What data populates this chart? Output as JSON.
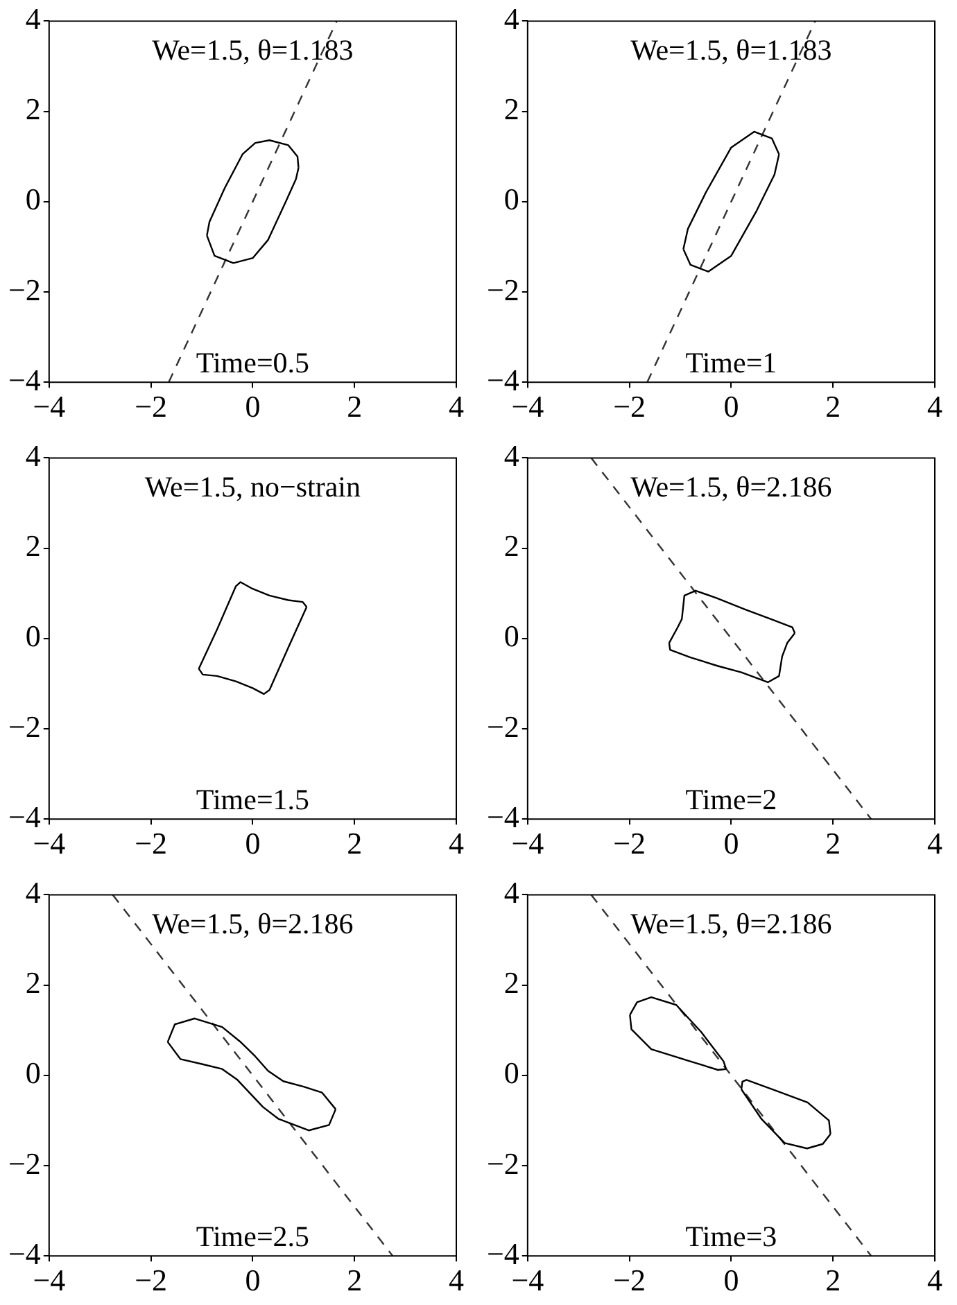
{
  "chart_data": [
    {
      "type": "line",
      "annotations": [
        "We=1.5, θ=1.183",
        "Time=0.5"
      ],
      "xlim": [
        -4,
        4
      ],
      "ylim": [
        -4,
        4
      ],
      "xticks": [
        -4,
        -2,
        0,
        2,
        4
      ],
      "yticks": [
        -4,
        -2,
        0,
        2,
        4
      ],
      "marker": "none",
      "legend": false,
      "series": [
        {
          "color": "#000000",
          "line_style": "solid",
          "x": [
            -0.9,
            -0.85,
            -0.55,
            -0.2,
            0.05,
            0.33,
            0.7,
            0.88,
            0.9,
            null,
            -0.9,
            -0.75,
            -0.38,
            0.0,
            0.3,
            0.65,
            0.85,
            0.9
          ],
          "values": [
            -0.75,
            -0.45,
            0.3,
            1.05,
            1.3,
            1.36,
            1.25,
            1.0,
            0.75,
            null,
            -0.75,
            -1.2,
            -1.36,
            -1.25,
            -0.85,
            0.0,
            0.5,
            0.75
          ]
        },
        {
          "color": "#333333",
          "line_style": "dashed",
          "x": [
            -1.65,
            1.65
          ],
          "values": [
            -4,
            4
          ]
        }
      ]
    },
    {
      "type": "line",
      "annotations": [
        "We=1.5, θ=1.183",
        "Time=1"
      ],
      "xlim": [
        -4,
        4
      ],
      "ylim": [
        -4,
        4
      ],
      "xticks": [
        -4,
        -2,
        0,
        2,
        4
      ],
      "yticks": [
        -4,
        -2,
        0,
        2,
        4
      ],
      "marker": "none",
      "legend": false,
      "series": [
        {
          "color": "#000000",
          "line_style": "solid",
          "x": [
            -0.94,
            -0.85,
            -0.5,
            0.0,
            0.45,
            0.8,
            0.94,
            null,
            -0.94,
            -0.8,
            -0.45,
            0.0,
            0.5,
            0.85,
            0.94
          ],
          "values": [
            -1.05,
            -0.6,
            0.2,
            1.2,
            1.55,
            1.4,
            1.05,
            null,
            -1.05,
            -1.4,
            -1.55,
            -1.2,
            -0.2,
            0.6,
            1.05
          ]
        },
        {
          "color": "#333333",
          "line_style": "dashed",
          "x": [
            -1.65,
            1.65
          ],
          "values": [
            -4,
            4
          ]
        }
      ]
    },
    {
      "type": "line",
      "annotations": [
        "We=1.5, no−strain",
        "Time=1.5"
      ],
      "xlim": [
        -4,
        4
      ],
      "ylim": [
        -4,
        4
      ],
      "xticks": [
        -4,
        -2,
        0,
        2,
        4
      ],
      "yticks": [
        -4,
        -2,
        0,
        2,
        4
      ],
      "marker": "none",
      "legend": false,
      "series": [
        {
          "color": "#000000",
          "line_style": "solid",
          "x": [
            -1.06,
            -0.7,
            -0.33,
            -0.24,
            0.0,
            0.33,
            0.7,
            0.98,
            1.06,
            null,
            -1.06,
            -0.98,
            -0.7,
            -0.33,
            0.0,
            0.22,
            0.33,
            0.7,
            1.06
          ],
          "values": [
            -0.67,
            0.2,
            1.16,
            1.25,
            1.1,
            0.95,
            0.85,
            0.81,
            0.7,
            null,
            -0.67,
            -0.8,
            -0.83,
            -0.95,
            -1.1,
            -1.23,
            -1.14,
            -0.2,
            0.7
          ]
        }
      ]
    },
    {
      "type": "line",
      "annotations": [
        "We=1.5, θ=2.186",
        "Time=2"
      ],
      "xlim": [
        -4,
        4
      ],
      "ylim": [
        -4,
        4
      ],
      "xticks": [
        -4,
        -2,
        0,
        2,
        4
      ],
      "yticks": [
        -4,
        -2,
        0,
        2,
        4
      ],
      "marker": "none",
      "legend": false,
      "series": [
        {
          "color": "#000000",
          "line_style": "solid",
          "x": [
            -1.22,
            -1.05,
            -0.97,
            -0.92,
            -0.7,
            -0.3,
            0.28,
            0.8,
            1.2,
            1.25,
            null,
            -1.22,
            -1.2,
            -0.8,
            -0.26,
            0.2,
            0.72,
            0.94,
            1.0,
            1.1,
            1.25
          ],
          "values": [
            -0.1,
            0.25,
            0.43,
            0.95,
            1.06,
            0.9,
            0.64,
            0.42,
            0.25,
            0.12,
            null,
            -0.1,
            -0.25,
            -0.42,
            -0.61,
            -0.75,
            -0.97,
            -0.83,
            -0.4,
            -0.1,
            0.12
          ]
        },
        {
          "color": "#333333",
          "line_style": "dashed",
          "x": [
            -2.75,
            2.75
          ],
          "values": [
            4,
            -4
          ]
        }
      ]
    },
    {
      "type": "line",
      "annotations": [
        "We=1.5, θ=2.186",
        "Time=2.5"
      ],
      "xlim": [
        -4,
        4
      ],
      "ylim": [
        -4,
        4
      ],
      "xticks": [
        -4,
        -2,
        0,
        2,
        4
      ],
      "yticks": [
        -4,
        -2,
        0,
        2,
        4
      ],
      "marker": "none",
      "legend": false,
      "series": [
        {
          "color": "#000000",
          "line_style": "solid",
          "x": [
            -1.67,
            -1.53,
            -1.14,
            -0.6,
            -0.25,
            0.05,
            0.3,
            0.6,
            1.0,
            1.36,
            1.63,
            null,
            -1.67,
            -1.42,
            -1.0,
            -0.6,
            -0.3,
            -0.05,
            0.2,
            0.5,
            1.1,
            1.5,
            1.63
          ],
          "values": [
            0.74,
            1.13,
            1.26,
            1.07,
            0.75,
            0.42,
            0.1,
            -0.13,
            -0.25,
            -0.38,
            -0.75,
            null,
            0.74,
            0.36,
            0.25,
            0.14,
            -0.1,
            -0.4,
            -0.7,
            -0.96,
            -1.22,
            -1.1,
            -0.75
          ]
        },
        {
          "color": "#333333",
          "line_style": "dashed",
          "x": [
            -2.75,
            2.75
          ],
          "values": [
            4,
            -4
          ]
        }
      ]
    },
    {
      "type": "line",
      "annotations": [
        "We=1.5, θ=2.186",
        "Time=3"
      ],
      "xlim": [
        -4,
        4
      ],
      "ylim": [
        -4,
        4
      ],
      "xticks": [
        -4,
        -2,
        0,
        2,
        4
      ],
      "yticks": [
        -4,
        -2,
        0,
        2,
        4
      ],
      "marker": "none",
      "legend": false,
      "series": [
        {
          "color": "#000000",
          "line_style": "solid",
          "x": [
            -1.99,
            -1.85,
            -1.57,
            -1.08,
            -0.59,
            -0.15,
            -0.1,
            null,
            -1.99,
            -1.96,
            -1.57,
            -0.86,
            -0.26,
            -0.1,
            null,
            0.2,
            0.22,
            0.3,
            0.86,
            1.5,
            1.92,
            1.95,
            null,
            0.2,
            0.59,
            1.05,
            1.49,
            1.8,
            1.95
          ],
          "values": [
            1.34,
            1.62,
            1.73,
            1.56,
            0.96,
            0.31,
            0.14,
            null,
            1.34,
            1.02,
            0.58,
            0.33,
            0.12,
            0.14,
            null,
            -0.31,
            -0.14,
            -0.1,
            -0.33,
            -0.6,
            -1.0,
            -1.3,
            null,
            -0.31,
            -0.96,
            -1.5,
            -1.62,
            -1.52,
            -1.3
          ]
        },
        {
          "color": "#333333",
          "line_style": "dashed",
          "x": [
            -2.75,
            2.75
          ],
          "values": [
            4,
            -4
          ]
        }
      ]
    }
  ]
}
